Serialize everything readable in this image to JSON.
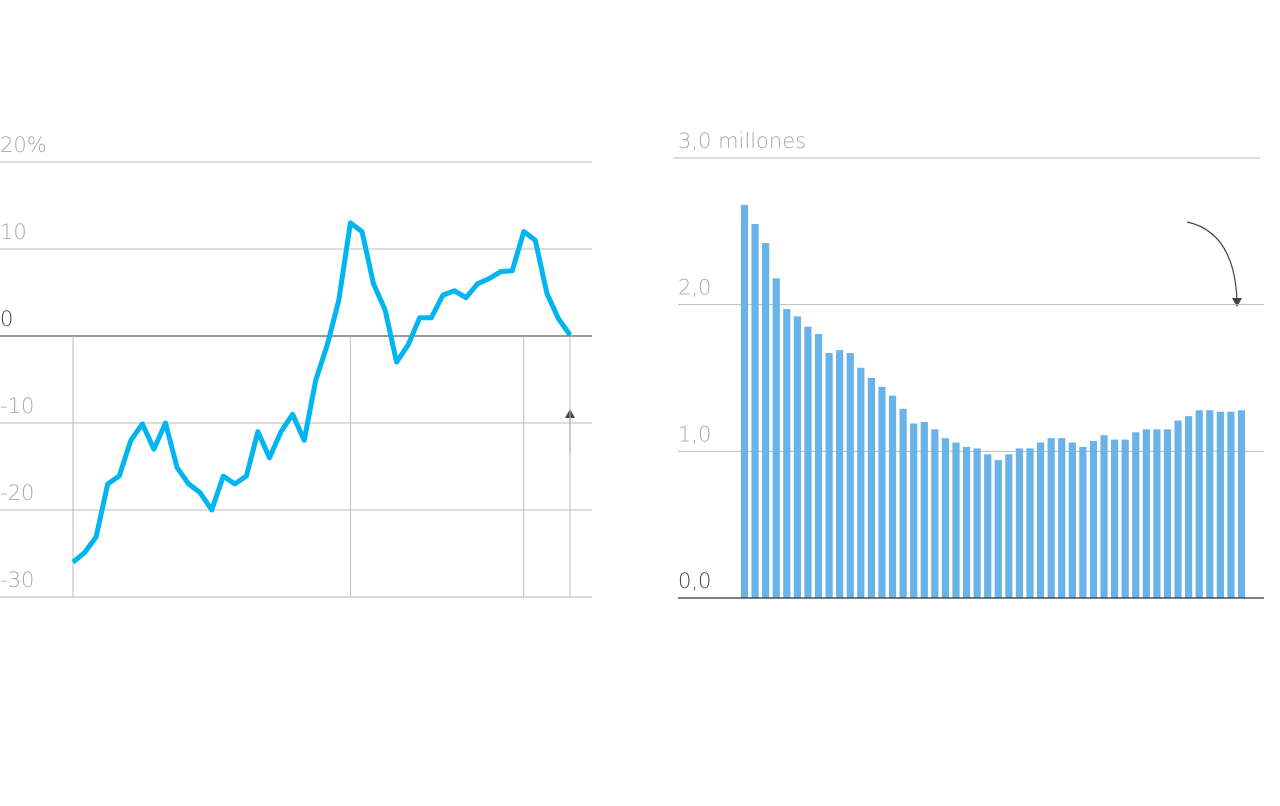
{
  "chart_data": [
    {
      "type": "line",
      "categories": [
        null,
        null,
        null,
        null,
        null,
        null,
        null,
        null,
        null,
        null,
        null,
        null,
        null,
        null,
        null,
        null,
        null,
        null,
        null,
        null,
        null,
        null,
        null,
        null,
        null,
        null,
        null,
        null,
        null,
        null,
        null,
        null,
        null,
        null,
        null,
        null,
        null,
        null,
        null,
        null,
        null,
        null,
        null,
        null
      ],
      "series": [
        {
          "color": "#00b5f0",
          "values": [
            -26.0,
            -24.9,
            -23.1,
            -17.0,
            -16.1,
            -12.0,
            -10.1,
            -13.0,
            -10.0,
            -15.1,
            -17.0,
            -18.0,
            -20.0,
            -16.1,
            -17.0,
            -16.1,
            -11.0,
            -14.0,
            -11.0,
            -9.0,
            -12.0,
            -5.1,
            -1.0,
            4.1,
            13.0,
            12.0,
            6.0,
            3.0,
            -3.0,
            -1.0,
            2.1,
            2.1,
            4.7,
            5.2,
            4.4,
            6.0,
            6.6,
            7.4,
            7.5,
            12.0,
            11.0,
            4.9,
            2.0,
            0.1
          ]
        }
      ],
      "ylim": [
        -30,
        20
      ],
      "yticks": [
        {
          "value": 20,
          "label": "20%"
        },
        10,
        0,
        -10,
        -20,
        -30
      ],
      "grid": true
    },
    {
      "type": "bar",
      "categories": [
        null,
        null,
        null,
        null,
        null,
        null,
        null,
        null,
        null,
        null,
        null,
        null,
        null,
        null,
        null,
        null,
        null,
        null,
        null,
        null,
        null,
        null,
        null,
        null,
        null,
        null,
        null,
        null,
        null,
        null,
        null,
        null,
        null,
        null,
        null,
        null,
        null,
        null,
        null,
        null,
        null,
        null,
        null,
        null,
        null,
        null,
        null,
        null
      ],
      "series": [
        {
          "color": "#6ab3e8",
          "values": [
            2.68,
            2.55,
            2.42,
            2.18,
            1.97,
            1.92,
            1.85,
            1.8,
            1.67,
            1.69,
            1.67,
            1.57,
            1.5,
            1.44,
            1.38,
            1.29,
            1.19,
            1.2,
            1.15,
            1.09,
            1.06,
            1.03,
            1.02,
            0.98,
            0.94,
            0.98,
            1.02,
            1.02,
            1.06,
            1.09,
            1.09,
            1.06,
            1.03,
            1.07,
            1.11,
            1.08,
            1.08,
            1.13,
            1.15,
            1.15,
            1.15,
            1.21,
            1.24,
            1.28,
            1.28,
            1.27,
            1.27,
            1.28
          ]
        }
      ],
      "ylim": [
        0,
        3
      ],
      "yticks": [
        {
          "value": 3,
          "label": "3,0 millones"
        },
        {
          "value": 2,
          "label": "2,0"
        },
        {
          "value": 1,
          "label": "1,0"
        },
        {
          "value": 0,
          "label": "0,0"
        }
      ],
      "grid": true
    }
  ]
}
